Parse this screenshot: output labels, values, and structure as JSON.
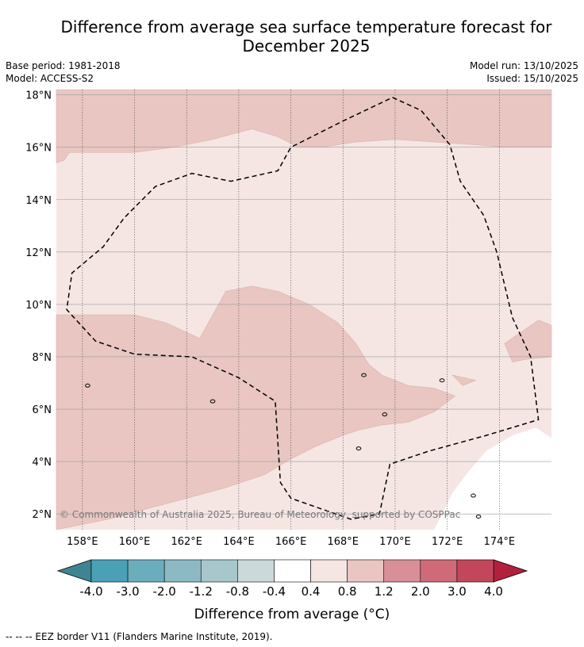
{
  "chart_data": {
    "type": "map",
    "title": "Difference from average sea surface temperature forecast for December 2025",
    "title_lines": [
      "Difference from average sea surface temperature forecast for",
      "December 2025"
    ],
    "base_period": "Base period: 1981-2018",
    "model": "Model: ACCESS-S2",
    "model_run": "Model run: 13/10/2025",
    "issued": "Issued: 15/10/2025",
    "lon_range": [
      157.0,
      176.0
    ],
    "lat_range": [
      1.4,
      18.2
    ],
    "x_ticks": [
      158,
      160,
      162,
      164,
      166,
      168,
      170,
      172,
      174
    ],
    "x_tick_labels": [
      "158°E",
      "160°E",
      "162°E",
      "164°E",
      "166°E",
      "168°E",
      "170°E",
      "172°E",
      "174°E"
    ],
    "y_ticks": [
      2,
      4,
      6,
      8,
      10,
      12,
      14,
      16,
      18
    ],
    "y_tick_labels": [
      "2°N",
      "4°N",
      "6°N",
      "8°N",
      "10°N",
      "12°N",
      "14°N",
      "16°N",
      "18°N"
    ],
    "colorbar_label": "Difference from average (°C)",
    "colorbar_boundaries": [
      -4.0,
      -3.0,
      -2.0,
      -1.2,
      -0.8,
      -0.4,
      0.4,
      0.8,
      1.2,
      2.0,
      3.0,
      4.0
    ],
    "colorbar_tick_labels": [
      "-4.0",
      "-3.0",
      "-2.0",
      "-1.2",
      "-0.8",
      "-0.4",
      "0.4",
      "0.8",
      "1.2",
      "2.0",
      "3.0",
      "4.0"
    ],
    "colorbar_colors": [
      "#4aa0b5",
      "#6aaebe",
      "#8cb9c4",
      "#a8c7cc",
      "#ccd9db",
      "#ffffff",
      "#f5e6e4",
      "#e9c6c2",
      "#d98f98",
      "#cf6a78",
      "#c3475a"
    ],
    "colorbar_under_color": "#3e8592",
    "colorbar_over_color": "#b3203e",
    "grid": true,
    "copyright": "© Commonwealth of Australia 2025, Bureau of Meteorology, supported by COSPPac",
    "footnote": "--  --  -- EEZ border V11 (Flanders Marine Institute, 2019).",
    "regions": [
      {
        "name": "anomaly-0.8-to-1.2-north",
        "range": [
          0.8,
          1.2
        ],
        "color": "#e9c6c2",
        "lonlat": [
          [
            157,
            18.2
          ],
          [
            176,
            18.2
          ],
          [
            176,
            16.0
          ],
          [
            174.3,
            16.0
          ],
          [
            173.0,
            16.1
          ],
          [
            171.5,
            16.2
          ],
          [
            170.0,
            16.3
          ],
          [
            168.5,
            16.2
          ],
          [
            167.2,
            16.0
          ],
          [
            166.3,
            16.0
          ],
          [
            165.5,
            16.4
          ],
          [
            164.5,
            16.7
          ],
          [
            163.0,
            16.3
          ],
          [
            161.5,
            16.0
          ],
          [
            160.0,
            15.8
          ],
          [
            158.8,
            15.8
          ],
          [
            157.5,
            15.8
          ],
          [
            157.3,
            15.5
          ],
          [
            157,
            15.4
          ]
        ]
      },
      {
        "name": "anomaly-0.8-to-1.2-central",
        "range": [
          0.8,
          1.2
        ],
        "color": "#e9c6c2",
        "lonlat": [
          [
            157,
            9.6
          ],
          [
            157.8,
            9.6
          ],
          [
            158.8,
            9.6
          ],
          [
            160.0,
            9.6
          ],
          [
            161.2,
            9.3
          ],
          [
            162.5,
            8.7
          ],
          [
            163.5,
            10.5
          ],
          [
            164.5,
            10.7
          ],
          [
            165.5,
            10.5
          ],
          [
            166.7,
            10.0
          ],
          [
            167.8,
            9.3
          ],
          [
            168.5,
            8.5
          ],
          [
            169.0,
            7.7
          ],
          [
            169.5,
            7.3
          ],
          [
            170.5,
            6.9
          ],
          [
            171.5,
            6.8
          ],
          [
            172.3,
            6.5
          ],
          [
            171.5,
            5.9
          ],
          [
            170.5,
            5.5
          ],
          [
            169.5,
            5.4
          ],
          [
            168.6,
            5.2
          ],
          [
            168.0,
            5.0
          ],
          [
            167.0,
            4.6
          ],
          [
            166.0,
            4.1
          ],
          [
            165.0,
            3.5
          ],
          [
            163.5,
            3.0
          ],
          [
            162.0,
            2.6
          ],
          [
            160.5,
            2.2
          ],
          [
            159.0,
            1.8
          ],
          [
            157.5,
            1.5
          ],
          [
            157,
            1.4
          ]
        ]
      },
      {
        "name": "anomaly-0.8-to-1.2-east",
        "range": [
          0.8,
          1.2
        ],
        "color": "#e9c6c2",
        "lonlat": [
          [
            174.2,
            8.5
          ],
          [
            175.5,
            9.4
          ],
          [
            176,
            9.2
          ],
          [
            176,
            8.0
          ],
          [
            175.0,
            7.9
          ],
          [
            174.5,
            7.8
          ]
        ]
      },
      {
        "name": "anomaly-0.8-to-1.2-patch",
        "range": [
          0.8,
          1.2
        ],
        "color": "#e9c6c2",
        "lonlat": [
          [
            172.2,
            7.3
          ],
          [
            173.1,
            7.1
          ],
          [
            172.6,
            6.9
          ]
        ]
      },
      {
        "name": "below-0.4-south-east",
        "range": [
          -0.4,
          0.4
        ],
        "color": "#ffffff",
        "lonlat": [
          [
            176,
            1.4
          ],
          [
            176,
            4.9
          ],
          [
            175.4,
            5.3
          ],
          [
            174.5,
            5.0
          ],
          [
            173.5,
            4.4
          ],
          [
            172.8,
            3.6
          ],
          [
            172.2,
            2.8
          ],
          [
            171.5,
            1.4
          ]
        ]
      }
    ],
    "eez_border": [
      [
        169.9,
        17.9
      ],
      [
        171.0,
        17.4
      ],
      [
        172.1,
        16.1
      ],
      [
        172.5,
        14.7
      ],
      [
        173.4,
        13.4
      ],
      [
        173.9,
        12.0
      ],
      [
        174.5,
        9.5
      ],
      [
        175.2,
        8.0
      ],
      [
        175.5,
        5.6
      ],
      [
        173.5,
        5.0
      ],
      [
        171.3,
        4.4
      ],
      [
        169.8,
        3.9
      ],
      [
        169.4,
        2.0
      ],
      [
        168.3,
        1.8
      ],
      [
        166.0,
        2.6
      ],
      [
        165.6,
        3.2
      ],
      [
        165.4,
        6.3
      ],
      [
        164.0,
        7.2
      ],
      [
        162.2,
        8.0
      ],
      [
        160.0,
        8.1
      ],
      [
        158.5,
        8.6
      ],
      [
        157.4,
        9.8
      ],
      [
        157.6,
        11.2
      ],
      [
        158.8,
        12.2
      ],
      [
        159.6,
        13.3
      ],
      [
        160.8,
        14.5
      ],
      [
        162.2,
        15.0
      ],
      [
        163.7,
        14.7
      ],
      [
        165.5,
        15.1
      ],
      [
        166.0,
        16.0
      ],
      [
        168.0,
        17.0
      ]
    ],
    "islands": [
      {
        "name": "island-mokil",
        "lon": 158.2,
        "lat": 6.9
      },
      {
        "name": "island-pingelap",
        "lon": 163.0,
        "lat": 6.3
      },
      {
        "name": "island-kosrae",
        "lon": 168.8,
        "lat": 7.3
      },
      {
        "name": "island-majuro",
        "lon": 171.8,
        "lat": 7.1
      },
      {
        "name": "island-arno",
        "lon": 169.6,
        "lat": 5.8
      },
      {
        "name": "island-jaluit",
        "lon": 168.6,
        "lat": 4.5
      },
      {
        "name": "island-tarawa",
        "lon": 173.0,
        "lat": 2.7
      },
      {
        "name": "island-abaiang",
        "lon": 173.2,
        "lat": 1.9
      }
    ]
  }
}
